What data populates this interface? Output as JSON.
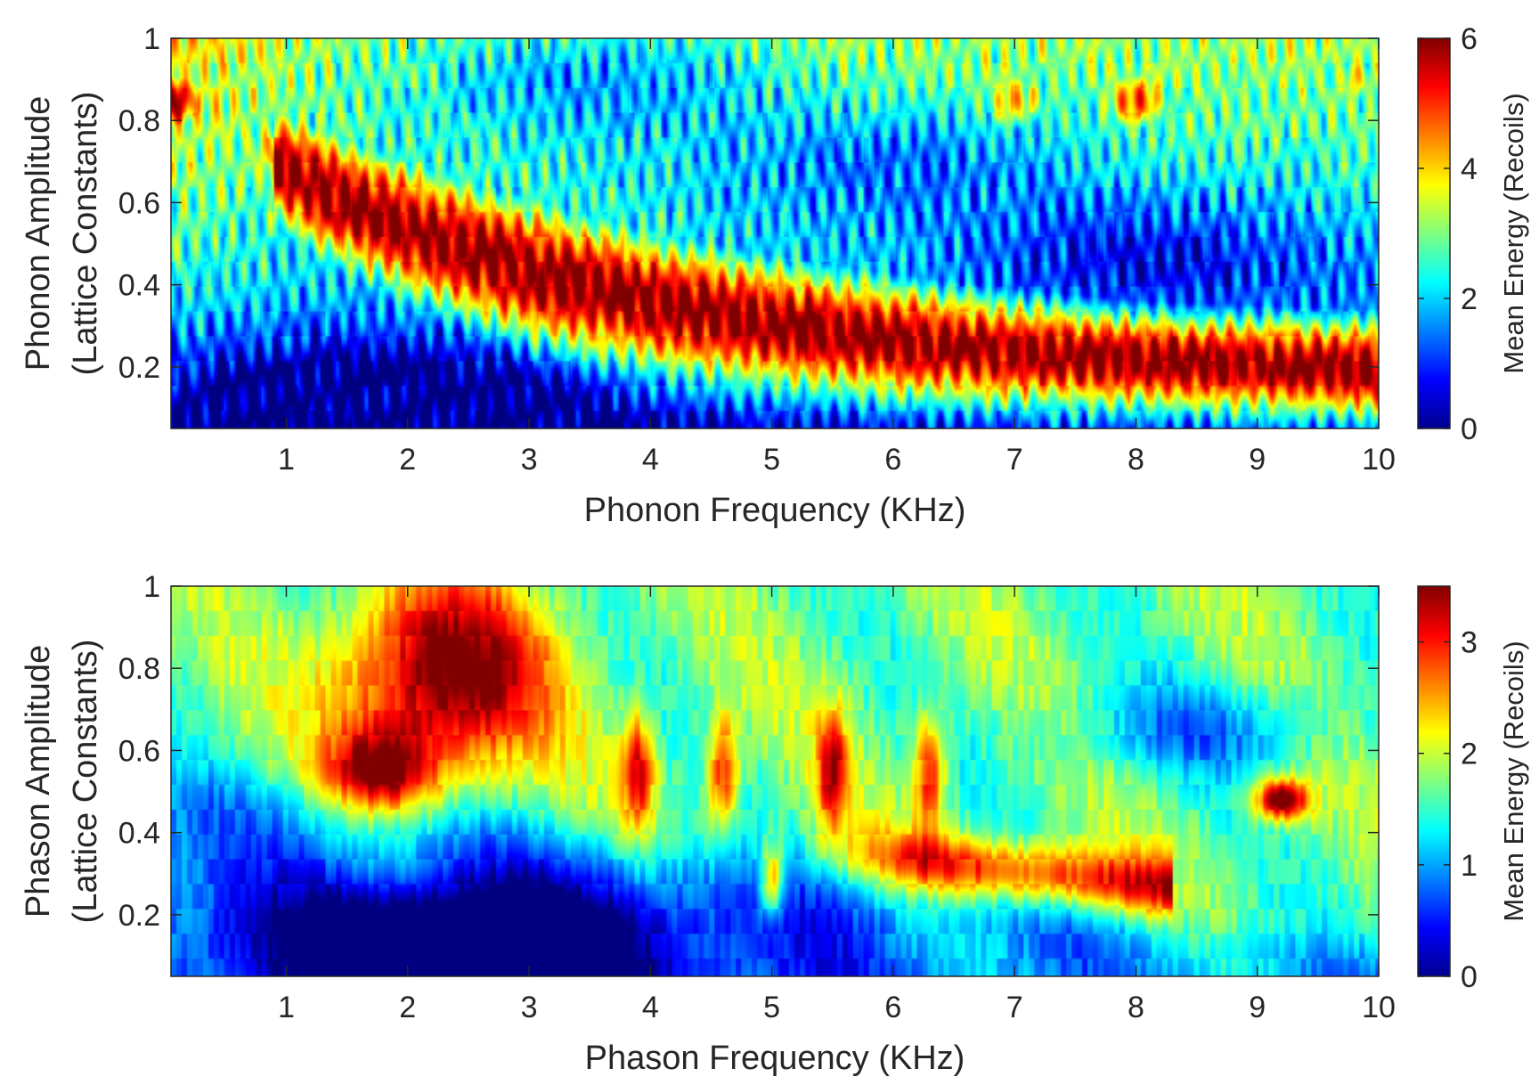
{
  "chart_data": [
    {
      "type": "heatmap",
      "name": "phonon",
      "xlabel": "Phonon Frequency (KHz)",
      "ylabel_line1": "Phonon Amplitude",
      "ylabel_line2": "(Lattice Constants)",
      "colorbar_label": "Mean Energy (Recoils)",
      "colormap": "jet",
      "xlim": [
        0.05,
        10
      ],
      "ylim": [
        0.05,
        1
      ],
      "clim": [
        0,
        6
      ],
      "xticks": [
        1,
        2,
        3,
        4,
        5,
        6,
        7,
        8,
        9,
        10
      ],
      "xtick_labels": [
        "1",
        "2",
        "3",
        "4",
        "5",
        "6",
        "7",
        "8",
        "9",
        "10"
      ],
      "yticks": [
        0.2,
        0.4,
        0.6,
        0.8,
        1
      ],
      "ytick_labels": [
        "0.2",
        "0.4",
        "0.6",
        "0.8",
        "1"
      ],
      "cticks": [
        0,
        2,
        4,
        6
      ],
      "ctick_labels": [
        "0",
        "2",
        "4",
        "6"
      ],
      "features": {
        "ridge_start": {
          "x": 1.0,
          "y": 0.68
        },
        "ridge_end": {
          "x": 10,
          "y": 0.17
        },
        "ridge_peak": 6.0,
        "hot_patches": [
          {
            "x": 8.0,
            "y": 0.85,
            "value": 4.8
          },
          {
            "x": 9.8,
            "y": 0.9,
            "value": 3.8
          },
          {
            "x": 7.0,
            "y": 0.85,
            "value": 4.2
          },
          {
            "x": 0.07,
            "y": 0.85,
            "value": 5.8
          }
        ],
        "cold_regions": [
          {
            "x": 3.5,
            "y": 0.9,
            "value": 1.0
          },
          {
            "x": 6.0,
            "y": 0.7,
            "value": 1.1
          },
          {
            "x": 1.5,
            "y": 0.12,
            "value": 0.4
          },
          {
            "x": 8.2,
            "y": 0.48,
            "value": 0.9
          }
        ]
      }
    },
    {
      "type": "heatmap",
      "name": "phason",
      "xlabel": "Phason Frequency (KHz)",
      "ylabel_line1": "Phason Amplitude",
      "ylabel_line2": "(Lattice Constants)",
      "colorbar_label": "Mean Energy (Recoils)",
      "colormap": "jet",
      "xlim": [
        0.05,
        10
      ],
      "ylim": [
        0.05,
        1
      ],
      "clim": [
        0,
        3.5
      ],
      "xticks": [
        1,
        2,
        3,
        4,
        5,
        6,
        7,
        8,
        9,
        10
      ],
      "xtick_labels": [
        "1",
        "2",
        "3",
        "4",
        "5",
        "6",
        "7",
        "8",
        "9",
        "10"
      ],
      "yticks": [
        0.2,
        0.4,
        0.6,
        0.8,
        1
      ],
      "ytick_labels": [
        "0.2",
        "0.4",
        "0.6",
        "0.8",
        "1"
      ],
      "cticks": [
        0,
        1,
        2,
        3
      ],
      "ctick_labels": [
        "0",
        "1",
        "2",
        "3"
      ],
      "features": {
        "main_blob": {
          "x": 2.3,
          "y": 0.78,
          "value": 3.5
        },
        "resonance_streaks_x": [
          3.9,
          4.6,
          5.5,
          6.3
        ],
        "lower_band": {
          "x_start": 5.8,
          "x_end": 8.0,
          "y": 0.25,
          "value": 2.8
        },
        "diagonal_streak": {
          "x": 5.0,
          "y": 0.28,
          "value": 3.0
        },
        "hot_spot": {
          "x": 9.2,
          "y": 0.48,
          "value": 3.3
        },
        "cold_regions": [
          {
            "x": 8.5,
            "y": 0.65,
            "value": 0.8
          },
          {
            "x": 2.5,
            "y": 0.15,
            "value": 0.3
          }
        ]
      }
    }
  ]
}
